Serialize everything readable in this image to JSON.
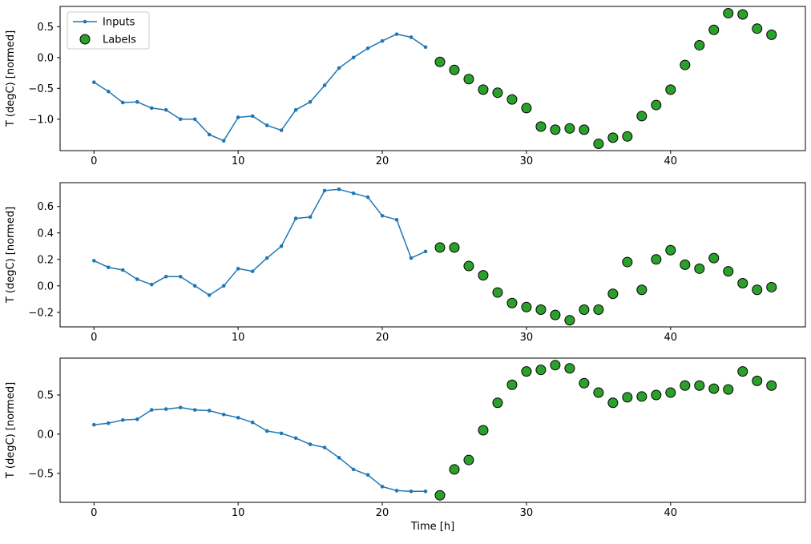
{
  "chart_data": {
    "type": "line",
    "title": "",
    "xlabel": "Time [h]",
    "ylabel": "T (degC) [normed]",
    "grid": false,
    "colors": {
      "inputs_line": "#1f77b4",
      "labels_fill": "#2ca02c",
      "labels_edge": "#000000",
      "spine": "#000000",
      "legend_border": "#cccccc",
      "legend_bg": "#ffffff"
    },
    "legend": {
      "position": "upper-left-of-first-subplot",
      "entries": [
        {
          "label": "Inputs",
          "marker": "line-with-dot",
          "color": "#1f77b4"
        },
        {
          "label": "Labels",
          "marker": "circle",
          "color": "#2ca02c",
          "edge": "#000000"
        }
      ]
    },
    "x_inputs": [
      0,
      1,
      2,
      3,
      4,
      5,
      6,
      7,
      8,
      9,
      10,
      11,
      12,
      13,
      14,
      15,
      16,
      17,
      18,
      19,
      20,
      21,
      22,
      23
    ],
    "x_labels": [
      24,
      25,
      26,
      27,
      28,
      29,
      30,
      31,
      32,
      33,
      34,
      35,
      36,
      37,
      38,
      39,
      40,
      41,
      42,
      43,
      44,
      45,
      46,
      47
    ],
    "xlim": [
      -2.35,
      49.35
    ],
    "xticks": [
      0,
      10,
      20,
      30,
      40
    ],
    "xtick_labels": [
      "0",
      "10",
      "20",
      "30",
      "40"
    ],
    "subplots": [
      {
        "ylabel": "T (degC) [normed]",
        "ylim": [
          -1.51,
          0.83
        ],
        "yticks": [
          0.5,
          0.0,
          -0.5,
          -1.0
        ],
        "ytick_labels": [
          "0.5",
          "0.0",
          "−0.5",
          "−1.0"
        ],
        "inputs": [
          -0.4,
          -0.55,
          -0.73,
          -0.72,
          -0.82,
          -0.85,
          -1.0,
          -1.0,
          -1.25,
          -1.35,
          -0.97,
          -0.95,
          -1.1,
          -1.18,
          -0.85,
          -0.72,
          -0.45,
          -0.17,
          0.0,
          0.15,
          0.27,
          0.38,
          0.33,
          0.17
        ],
        "labels": [
          -0.07,
          -0.2,
          -0.35,
          -0.52,
          -0.57,
          -0.68,
          -0.82,
          -1.12,
          -1.17,
          -1.15,
          -1.17,
          -1.4,
          -1.3,
          -1.28,
          -0.95,
          -0.77,
          -0.52,
          -0.12,
          0.2,
          0.45,
          0.72,
          0.7,
          0.47,
          0.37
        ]
      },
      {
        "ylabel": "T (degC) [normed]",
        "ylim": [
          -0.31,
          0.78
        ],
        "yticks": [
          0.6,
          0.4,
          0.2,
          0.0,
          -0.2
        ],
        "ytick_labels": [
          "0.6",
          "0.4",
          "0.2",
          "0.0",
          "−0.2"
        ],
        "inputs": [
          0.19,
          0.14,
          0.12,
          0.05,
          0.01,
          0.07,
          0.07,
          0.0,
          -0.07,
          0.0,
          0.13,
          0.11,
          0.21,
          0.3,
          0.51,
          0.52,
          0.72,
          0.73,
          0.7,
          0.67,
          0.53,
          0.5,
          0.21,
          0.26
        ],
        "labels": [
          0.29,
          0.29,
          0.15,
          0.08,
          -0.05,
          -0.13,
          -0.16,
          -0.18,
          -0.22,
          -0.26,
          -0.18,
          -0.18,
          -0.06,
          0.18,
          -0.03,
          0.2,
          0.27,
          0.16,
          0.13,
          0.21,
          0.11,
          0.02,
          -0.03,
          -0.01
        ]
      },
      {
        "ylabel": "T (degC) [normed]",
        "ylim": [
          -0.87,
          0.97
        ],
        "yticks": [
          0.5,
          0.0,
          -0.5
        ],
        "ytick_labels": [
          "0.5",
          "0.0",
          "−0.5"
        ],
        "inputs": [
          0.12,
          0.14,
          0.18,
          0.19,
          0.31,
          0.32,
          0.34,
          0.31,
          0.3,
          0.25,
          0.21,
          0.15,
          0.04,
          0.01,
          -0.05,
          -0.13,
          -0.17,
          -0.3,
          -0.45,
          -0.52,
          -0.67,
          -0.72,
          -0.73,
          -0.73
        ],
        "labels": [
          -0.78,
          -0.45,
          -0.33,
          0.05,
          0.4,
          0.63,
          0.8,
          0.82,
          0.88,
          0.84,
          0.65,
          0.53,
          0.4,
          0.47,
          0.48,
          0.5,
          0.53,
          0.62,
          0.62,
          0.58,
          0.57,
          0.8,
          0.68,
          0.62
        ]
      }
    ]
  }
}
